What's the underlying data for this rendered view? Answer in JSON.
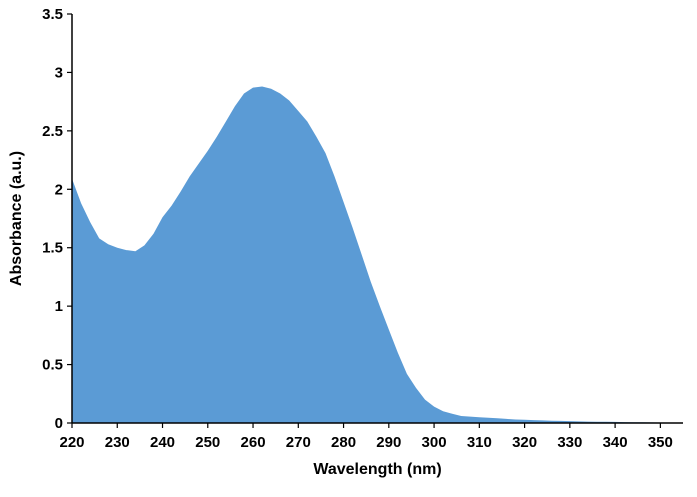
{
  "chart_data": {
    "type": "area",
    "title": "",
    "xlabel": "Wavelength (nm)",
    "ylabel": "Absorbance (a.u.)",
    "xlim": [
      220,
      355
    ],
    "ylim": [
      0,
      3.5
    ],
    "x_ticks": [
      220,
      230,
      240,
      250,
      260,
      270,
      280,
      290,
      300,
      310,
      320,
      330,
      340,
      350
    ],
    "y_ticks": [
      0,
      0.5,
      1,
      1.5,
      2,
      2.5,
      3,
      3.5
    ],
    "y_tick_labels": [
      "0",
      "0.5",
      "1",
      "1.5",
      "2",
      "2.5",
      "3",
      "3.5"
    ],
    "grid": false,
    "fill_color": "#5b9bd5",
    "series": [
      {
        "x": [
          220,
          222,
          224,
          226,
          228,
          230,
          232,
          234,
          236,
          238,
          240,
          242,
          244,
          246,
          248,
          250,
          252,
          254,
          256,
          258,
          260,
          262,
          264,
          266,
          268,
          270,
          272,
          274,
          276,
          278,
          280,
          282,
          284,
          286,
          288,
          290,
          292,
          294,
          296,
          298,
          300,
          302,
          304,
          306,
          308,
          310,
          312,
          314,
          316,
          318,
          320,
          322,
          324,
          326,
          328,
          330,
          332,
          334,
          336,
          338,
          340,
          342,
          344,
          346,
          348,
          350,
          352,
          354
        ],
        "values": [
          2.09,
          1.88,
          1.72,
          1.58,
          1.53,
          1.5,
          1.48,
          1.47,
          1.52,
          1.62,
          1.76,
          1.86,
          1.98,
          2.11,
          2.22,
          2.33,
          2.45,
          2.58,
          2.71,
          2.82,
          2.87,
          2.88,
          2.86,
          2.82,
          2.76,
          2.67,
          2.58,
          2.45,
          2.31,
          2.11,
          1.89,
          1.67,
          1.44,
          1.21,
          1.0,
          0.8,
          0.6,
          0.42,
          0.3,
          0.2,
          0.14,
          0.1,
          0.08,
          0.06,
          0.055,
          0.05,
          0.045,
          0.04,
          0.035,
          0.03,
          0.028,
          0.025,
          0.022,
          0.02,
          0.018,
          0.016,
          0.014,
          0.012,
          0.011,
          0.01,
          0.009,
          0.008,
          0.007,
          0.006,
          0.005,
          0.004,
          0.003,
          0.002
        ]
      }
    ]
  }
}
